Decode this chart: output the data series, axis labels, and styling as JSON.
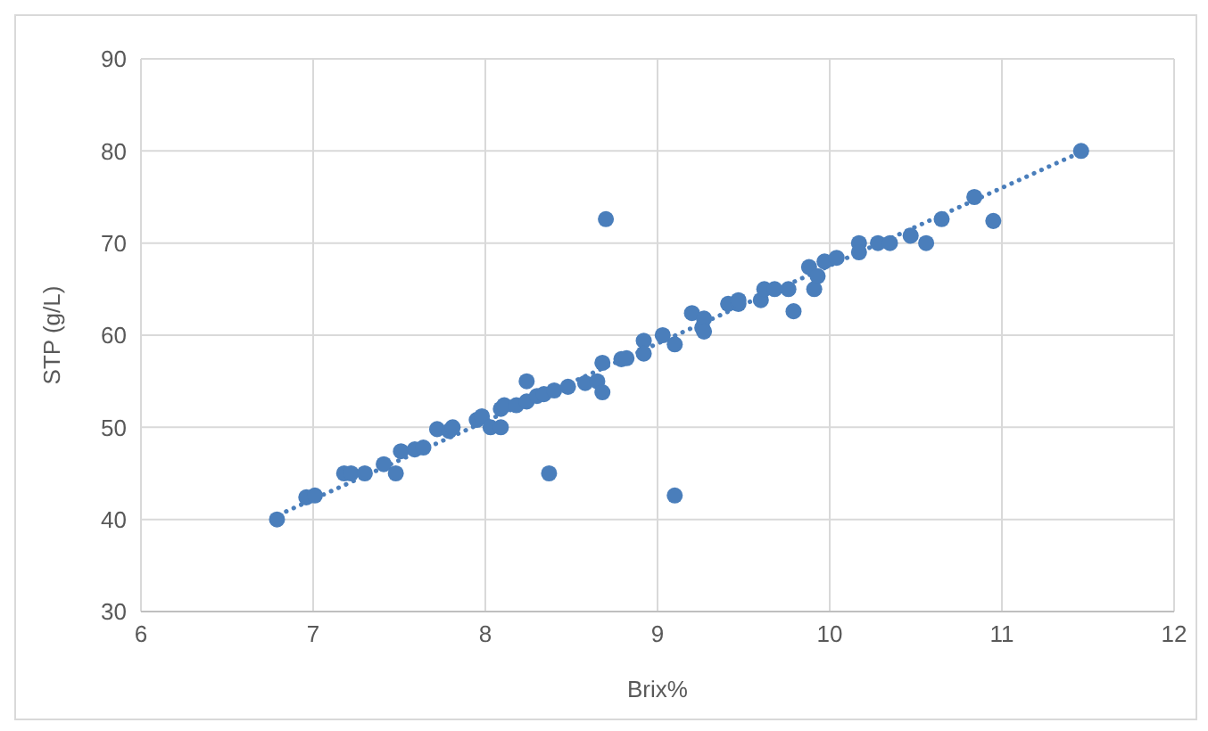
{
  "chart_data": {
    "type": "scatter",
    "xlabel": "Brix%",
    "ylabel": "STP (g/L)",
    "xlim": [
      6,
      12
    ],
    "xticks": [
      6,
      7,
      8,
      9,
      10,
      11,
      12
    ],
    "ylim": [
      30,
      90
    ],
    "yticks": [
      30,
      40,
      50,
      60,
      70,
      80,
      90
    ],
    "grid": true,
    "marker": "circle",
    "series": [
      {
        "color": "#4a7ebb",
        "x": [
          6.79,
          6.96,
          7.01,
          7.18,
          7.22,
          7.3,
          7.41,
          7.48,
          7.51,
          7.59,
          7.64,
          7.72,
          7.79,
          7.81,
          7.95,
          7.98,
          8.03,
          8.09,
          8.09,
          8.11,
          8.18,
          8.24,
          8.24,
          8.3,
          8.34,
          8.4,
          8.48,
          8.58,
          8.65,
          8.68,
          8.68,
          8.79,
          8.82,
          8.92,
          8.92,
          9.03,
          9.1,
          9.2,
          9.26,
          9.27,
          9.27,
          9.41,
          9.47,
          9.47,
          9.6,
          9.62,
          9.68,
          9.76,
          9.79,
          9.88,
          9.91,
          9.93,
          9.97,
          10.04,
          10.17,
          10.17,
          10.28,
          10.35,
          10.47,
          10.56,
          10.65,
          10.84,
          10.95,
          11.46,
          8.37,
          9.1,
          8.7
        ],
        "values": [
          40,
          42.4,
          42.6,
          45,
          45,
          45,
          46,
          45,
          47.4,
          47.6,
          47.8,
          49.8,
          49.6,
          50,
          50.8,
          51.2,
          50,
          50,
          52,
          52.4,
          52.4,
          55,
          52.8,
          53.4,
          53.6,
          54,
          54.4,
          54.8,
          55,
          57,
          53.8,
          57.4,
          57.5,
          59.4,
          58,
          60,
          59,
          62.4,
          60.8,
          61.8,
          60.4,
          63.4,
          63.4,
          63.8,
          63.8,
          65,
          65,
          65,
          62.6,
          67.4,
          65,
          66.4,
          68,
          68.4,
          70,
          69,
          70,
          70,
          70.8,
          70,
          72.6,
          75,
          72.4,
          80,
          45,
          42.6,
          72.6
        ]
      },
      {
        "type": "line",
        "color": "#4a7ebb",
        "line_style": "dotted",
        "marker": "none",
        "x": [
          6.8,
          11.45
        ],
        "values": [
          40.5,
          79.8
        ]
      }
    ]
  }
}
